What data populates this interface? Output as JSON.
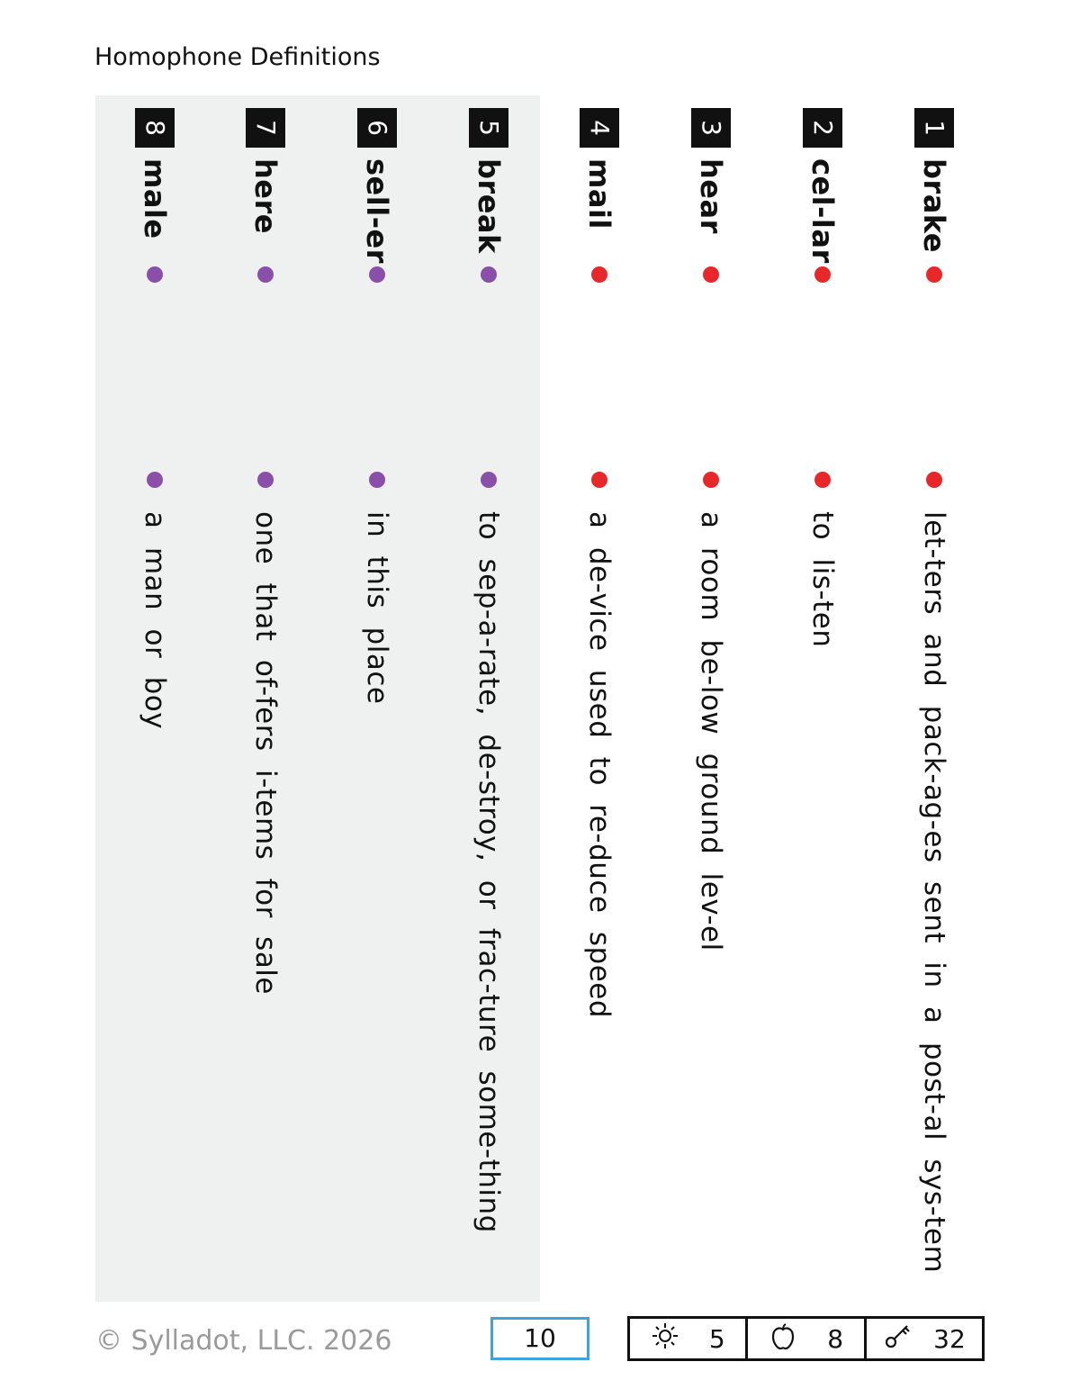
{
  "title": "Homophone Definitions",
  "colors": {
    "red": "#e8272a",
    "purple": "#8a4fa8",
    "blue": "#3fa4dc"
  },
  "items": [
    {
      "num": "1",
      "word": "brake",
      "definition": "let-ters and pack-ag-es sent in a post-al sys-tem",
      "dot_color": "#e8272a"
    },
    {
      "num": "2",
      "word": "cel-lar",
      "definition": "to lis-ten",
      "dot_color": "#e8272a"
    },
    {
      "num": "3",
      "word": "hear",
      "definition": "a room be-low ground lev-el",
      "dot_color": "#e8272a"
    },
    {
      "num": "4",
      "word": "mail",
      "definition": "a de-vice used to re-duce speed",
      "dot_color": "#e8272a"
    },
    {
      "num": "5",
      "word": "break",
      "definition": "to sep-a-rate, de-stroy, or frac-ture some-thing",
      "dot_color": "#8a4fa8"
    },
    {
      "num": "6",
      "word": "sell-er",
      "definition": "in this place",
      "dot_color": "#8a4fa8"
    },
    {
      "num": "7",
      "word": "here",
      "definition": "one that of-fers i-tems for sale",
      "dot_color": "#8a4fa8"
    },
    {
      "num": "8",
      "word": "male",
      "definition": "a man or boy",
      "dot_color": "#8a4fa8"
    }
  ],
  "footer": {
    "copyright": "© Sylladot, LLC.  2026",
    "page_number": "10",
    "counts": [
      {
        "icon": "sun-icon",
        "value": "5"
      },
      {
        "icon": "apple-icon",
        "value": "8"
      },
      {
        "icon": "key-icon",
        "value": "32"
      }
    ]
  }
}
